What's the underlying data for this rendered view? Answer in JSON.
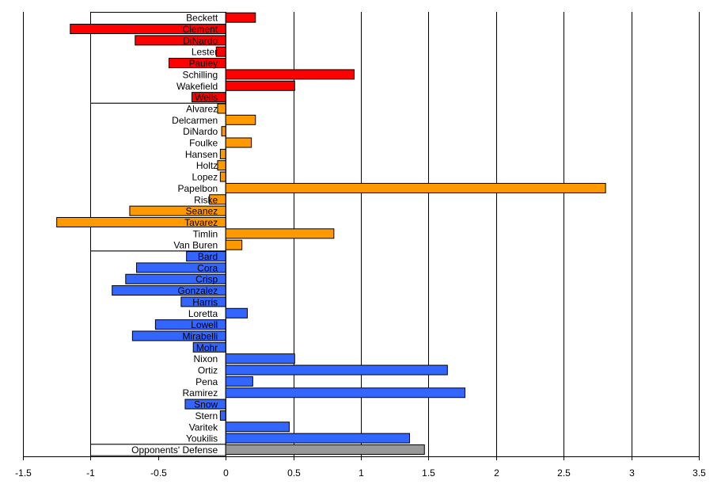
{
  "chart_data": {
    "type": "bar",
    "orientation": "horizontal",
    "xlim": [
      -1.5,
      3.5
    ],
    "x_ticks": [
      -1.5,
      -1,
      -0.5,
      0,
      0.5,
      1,
      1.5,
      2,
      2.5,
      3,
      3.5
    ],
    "x_tick_labels": [
      "-1.5",
      "-1",
      "-0.5",
      "0",
      "0.5",
      "1",
      "1.5",
      "2",
      "2.5",
      "3",
      "3.5"
    ],
    "grid": "vertical major gridlines",
    "legend": "none",
    "colors": {
      "starters": "#ff0000",
      "relievers": "#ff9900",
      "batters": "#3366ff",
      "defense": "#999999"
    },
    "groups": [
      {
        "color": "#ff0000",
        "items": [
          {
            "label": "Beckett",
            "value": 0.22
          },
          {
            "label": "Clement",
            "value": -1.15
          },
          {
            "label": "DiNardo",
            "value": -0.67
          },
          {
            "label": "Lester",
            "value": -0.07
          },
          {
            "label": "Pauley",
            "value": -0.42
          },
          {
            "label": "Schilling",
            "value": 0.95
          },
          {
            "label": "Wakefield",
            "value": 0.51
          },
          {
            "label": "Wells",
            "value": -0.25
          }
        ]
      },
      {
        "color": "#ff9900",
        "items": [
          {
            "label": "Alvarez",
            "value": -0.06
          },
          {
            "label": "Delcarmen",
            "value": 0.22
          },
          {
            "label": "DiNardo",
            "value": -0.03
          },
          {
            "label": "Foulke",
            "value": 0.19
          },
          {
            "label": "Hansen",
            "value": -0.04
          },
          {
            "label": "Holtz",
            "value": -0.06
          },
          {
            "label": "Lopez",
            "value": -0.04
          },
          {
            "label": "Papelbon",
            "value": 2.81
          },
          {
            "label": "Riske",
            "value": -0.12
          },
          {
            "label": "Seanez",
            "value": -0.71
          },
          {
            "label": "Tavarez",
            "value": -1.25
          },
          {
            "label": "Timlin",
            "value": 0.8
          },
          {
            "label": "Van Buren",
            "value": 0.12
          }
        ]
      },
      {
        "color": "#3366ff",
        "items": [
          {
            "label": "Bard",
            "value": -0.29
          },
          {
            "label": "Cora",
            "value": -0.66
          },
          {
            "label": "Crisp",
            "value": -0.74
          },
          {
            "label": "Gonzalez",
            "value": -0.84
          },
          {
            "label": "Harris",
            "value": -0.33
          },
          {
            "label": "Loretta",
            "value": 0.16
          },
          {
            "label": "Lowell",
            "value": -0.52
          },
          {
            "label": "Mirabelli",
            "value": -0.69
          },
          {
            "label": "Mohr",
            "value": -0.24
          },
          {
            "label": "Nixon",
            "value": 0.51
          },
          {
            "label": "Ortiz",
            "value": 1.64
          },
          {
            "label": "Pena",
            "value": 0.2
          },
          {
            "label": "Ramirez",
            "value": 1.77
          },
          {
            "label": "Snow",
            "value": -0.3
          },
          {
            "label": "Stern",
            "value": -0.04
          },
          {
            "label": "Varitek",
            "value": 0.47
          },
          {
            "label": "Youkilis",
            "value": 1.36
          }
        ]
      },
      {
        "color": "#999999",
        "items": [
          {
            "label": "Opponents' Defense",
            "value": 1.47
          }
        ]
      }
    ]
  }
}
